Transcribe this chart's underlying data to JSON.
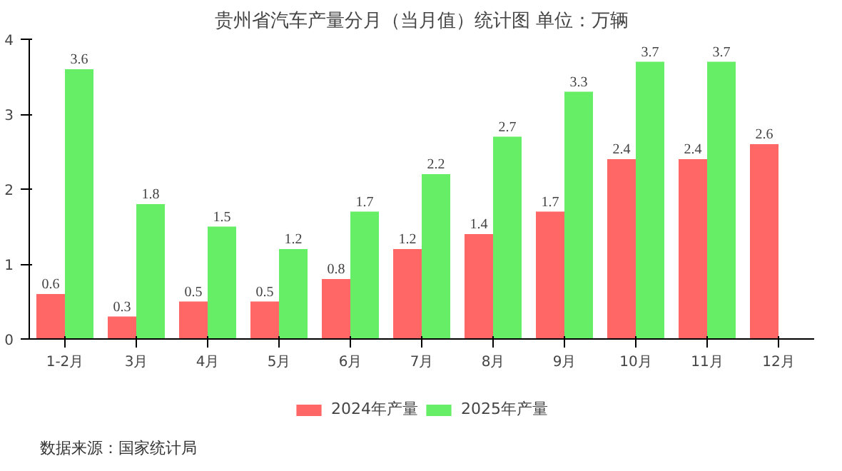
{
  "chart_data": {
    "type": "bar",
    "title": "贵州省汽车产量分月（当月值）统计图 单位：万辆",
    "categories": [
      "1-2月",
      "3月",
      "4月",
      "5月",
      "6月",
      "7月",
      "8月",
      "9月",
      "10月",
      "11月",
      "12月"
    ],
    "series": [
      {
        "name": "2024年产量",
        "color": "#ff6666",
        "values": [
          0.6,
          0.3,
          0.5,
          0.5,
          0.8,
          1.2,
          1.4,
          1.7,
          2.4,
          2.4,
          2.6
        ]
      },
      {
        "name": "2025年产量",
        "color": "#66ee66",
        "values": [
          3.6,
          1.8,
          1.5,
          1.2,
          1.7,
          2.2,
          2.7,
          3.3,
          3.7,
          3.7,
          null
        ]
      }
    ],
    "ylim": [
      0,
      4
    ],
    "yticks": [
      0,
      1,
      2,
      3,
      4
    ],
    "grid": false,
    "legend": "bottom",
    "data_labels": true,
    "annotations": [
      "数据来源：国家统计局"
    ]
  }
}
